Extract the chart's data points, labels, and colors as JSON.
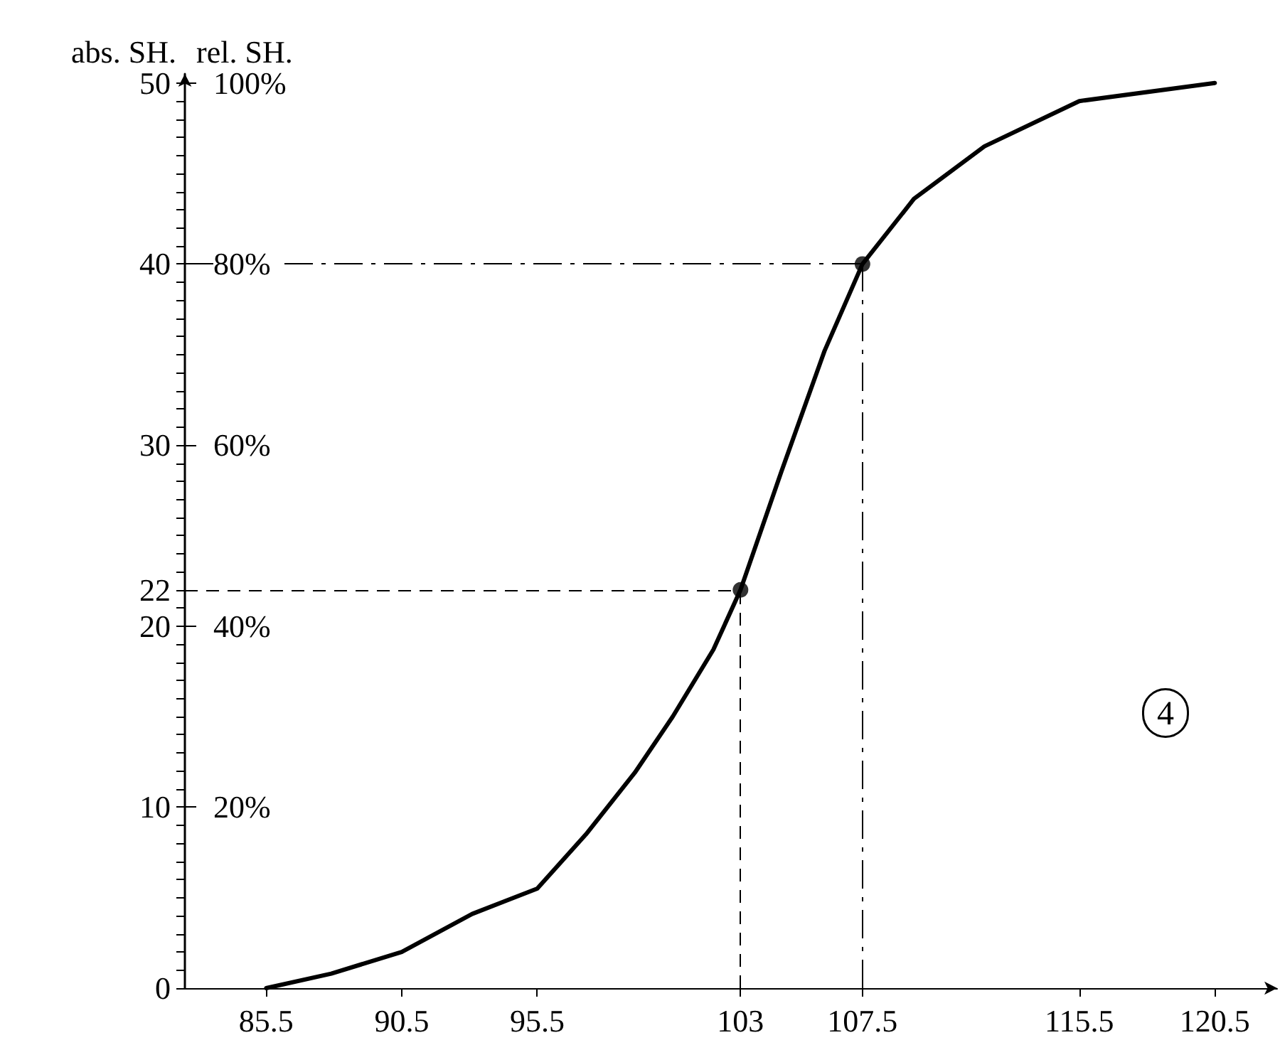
{
  "chart_data": {
    "type": "line",
    "ylabel": "abs. SH.",
    "y2label": "rel. SH.",
    "annotations": [
      "4"
    ],
    "grid": false,
    "xlim": [
      82.5,
      122.8
    ],
    "xticks": [
      85.5,
      90.5,
      95.5,
      103,
      107.5,
      115.5,
      120.5
    ],
    "ylim": [
      0,
      50.5
    ],
    "yticks": [
      0,
      {
        "value": 1,
        "label": null
      },
      {
        "value": 2,
        "label": null
      },
      {
        "value": 3,
        "label": null
      },
      {
        "value": 4,
        "label": null
      },
      {
        "value": 5,
        "label": null
      },
      {
        "value": 6,
        "label": null
      },
      {
        "value": 7,
        "label": null
      },
      {
        "value": 8,
        "label": null
      },
      {
        "value": 9,
        "label": null
      },
      10,
      {
        "value": 11,
        "label": null
      },
      {
        "value": 12,
        "label": null
      },
      {
        "value": 13,
        "label": null
      },
      {
        "value": 14,
        "label": null
      },
      {
        "value": 15,
        "label": null
      },
      {
        "value": 16,
        "label": null
      },
      {
        "value": 17,
        "label": null
      },
      {
        "value": 18,
        "label": null
      },
      {
        "value": 19,
        "label": null
      },
      20,
      {
        "value": 21,
        "label": null
      },
      22,
      {
        "value": 23,
        "label": null
      },
      {
        "value": 24,
        "label": null
      },
      {
        "value": 25,
        "label": null
      },
      {
        "value": 26,
        "label": null
      },
      {
        "value": 27,
        "label": null
      },
      {
        "value": 28,
        "label": null
      },
      {
        "value": 29,
        "label": null
      },
      30,
      {
        "value": 31,
        "label": null
      },
      {
        "value": 32,
        "label": null
      },
      {
        "value": 33,
        "label": null
      },
      {
        "value": 34,
        "label": null
      },
      {
        "value": 35,
        "label": null
      },
      {
        "value": 36,
        "label": null
      },
      {
        "value": 37,
        "label": null
      },
      {
        "value": 38,
        "label": null
      },
      {
        "value": 39,
        "label": null
      },
      40,
      {
        "value": 41,
        "label": null
      },
      {
        "value": 42,
        "label": null
      },
      {
        "value": 43,
        "label": null
      },
      {
        "value": 44,
        "label": null
      },
      {
        "value": 45,
        "label": null
      },
      {
        "value": 46,
        "label": null
      },
      {
        "value": 47,
        "label": null
      },
      {
        "value": 48,
        "label": null
      },
      {
        "value": 49,
        "label": null
      },
      50
    ],
    "y2lim": [
      0,
      101
    ],
    "y2ticks": [
      {
        "value": 20,
        "label": "20%"
      },
      {
        "value": 40,
        "label": "40%"
      },
      {
        "value": 60,
        "label": "60%"
      },
      {
        "value": 80,
        "label": "80%"
      },
      {
        "value": 100,
        "label": "100%"
      }
    ],
    "series": [
      {
        "color": "#000000",
        "marker": "none",
        "line_style": "solid",
        "x": [
          85.5,
          87.9,
          90.5,
          93.1,
          95.5,
          97.3,
          99.1,
          100.5,
          102,
          103,
          104.5,
          106.1,
          107.5,
          109.4,
          112,
          115.5,
          120.5
        ],
        "values": [
          0,
          0.8,
          2,
          4.1,
          5.5,
          8.5,
          11.9,
          15,
          18.7,
          22,
          28.5,
          35.2,
          40,
          43.6,
          46.5,
          49,
          50
        ]
      },
      {
        "type": "scatter",
        "color": "#000000",
        "marker": "circle",
        "x": [
          103,
          107.5
        ],
        "values": [
          22,
          40
        ]
      }
    ],
    "ref_lines": [
      {
        "axis": "y",
        "value": 22,
        "line_style": "dashed",
        "color": "#000000"
      },
      {
        "axis": "x",
        "value": 103,
        "line_style": "dashed",
        "color": "#000000"
      },
      {
        "axis": "y",
        "value": 40,
        "line_style": "dashdot",
        "color": "#000000"
      },
      {
        "axis": "x",
        "value": 107.5,
        "line_style": "dashdot",
        "color": "#000000"
      }
    ]
  }
}
